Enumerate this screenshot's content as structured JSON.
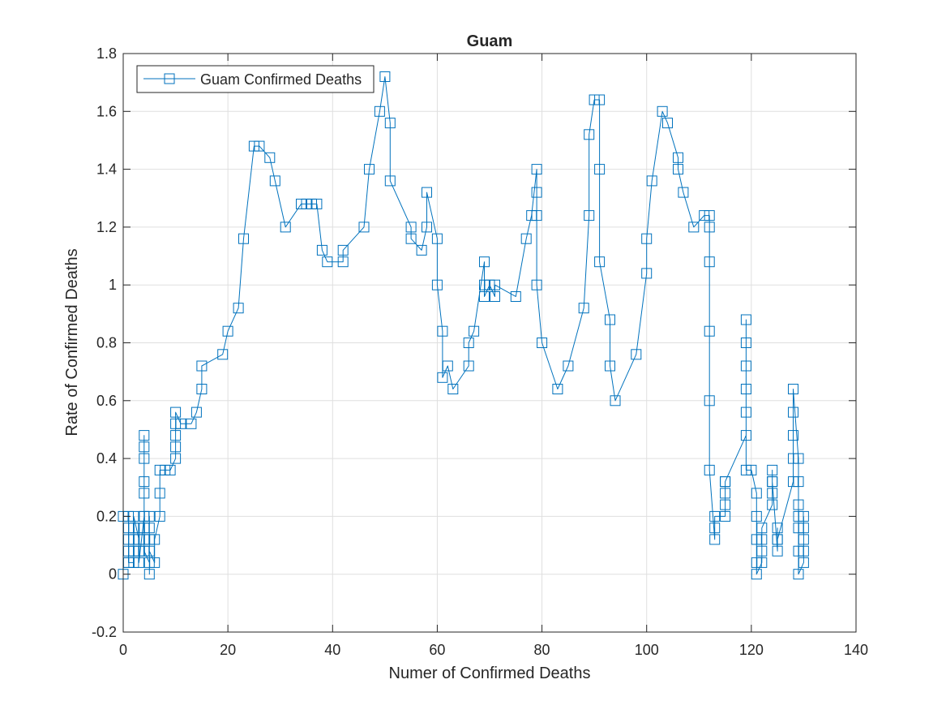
{
  "chart_data": {
    "type": "line",
    "title": "Guam",
    "xlabel": "Numer of Confirmed Deaths",
    "ylabel": "Rate of Confirmed Deaths",
    "xlim": [
      0,
      140
    ],
    "ylim": [
      -0.2,
      1.8
    ],
    "xticks": [
      0,
      20,
      40,
      60,
      80,
      100,
      120,
      140
    ],
    "yticks": [
      -0.2,
      0,
      0.2,
      0.4,
      0.6,
      0.8,
      1,
      1.2,
      1.4,
      1.6,
      1.8
    ],
    "xtick_labels": [
      "0",
      "20",
      "40",
      "60",
      "80",
      "100",
      "120",
      "140"
    ],
    "ytick_labels": [
      "-0.2",
      "0",
      "0.2",
      "0.4",
      "0.6",
      "0.8",
      "1",
      "1.2",
      "1.4",
      "1.6",
      "1.8"
    ],
    "grid": true,
    "legend": {
      "position": "top-left",
      "entries": [
        "Guam Confirmed Deaths"
      ]
    },
    "colors": {
      "series": "#0072BD",
      "grid": "#dfdfdf",
      "axis": "#262626"
    },
    "series": [
      {
        "name": "Guam Confirmed Deaths",
        "marker": "square",
        "x": [
          0,
          0,
          1,
          1,
          1,
          1,
          1,
          1,
          2,
          2,
          2,
          2,
          2,
          3,
          3,
          3,
          3,
          4,
          4,
          4,
          4,
          4,
          4,
          4,
          4,
          4,
          4,
          5,
          5,
          5,
          5,
          5,
          5,
          6,
          6,
          7,
          7,
          7,
          8,
          9,
          10,
          10,
          10,
          10,
          10,
          11,
          13,
          14,
          15,
          15,
          19,
          20,
          22,
          23,
          25,
          26,
          28,
          29,
          31,
          34,
          35,
          36,
          37,
          38,
          39,
          42,
          42,
          46,
          47,
          49,
          50,
          51,
          51,
          55,
          55,
          57,
          58,
          58,
          60,
          60,
          61,
          61,
          62,
          63,
          66,
          66,
          67,
          69,
          69,
          69,
          70,
          71,
          71,
          75,
          77,
          78,
          79,
          79,
          79,
          79,
          80,
          83,
          85,
          88,
          89,
          89,
          90,
          91,
          91,
          91,
          93,
          93,
          94,
          98,
          100,
          100,
          101,
          103,
          104,
          106,
          106,
          107,
          109,
          111,
          112,
          112,
          112,
          112,
          112,
          112,
          113,
          113,
          113,
          115,
          115,
          115,
          115,
          115,
          119,
          119,
          119,
          119,
          119,
          119,
          119,
          120,
          121,
          121,
          121,
          121,
          121,
          122,
          122,
          122,
          122,
          124,
          124,
          124,
          124,
          124,
          125,
          125,
          125,
          125,
          128,
          128,
          128,
          128,
          128,
          129,
          129,
          129,
          129,
          129,
          129,
          129,
          130,
          130,
          130,
          130,
          130
        ],
        "y": [
          0,
          0.2,
          0.2,
          0.16,
          0.12,
          0.08,
          0.04,
          0.04,
          0.04,
          0.08,
          0.12,
          0.16,
          0.2,
          0.12,
          0.16,
          0.08,
          0.04,
          0.2,
          0.28,
          0.32,
          0.4,
          0.44,
          0.48,
          0.2,
          0.16,
          0.12,
          0.08,
          0.04,
          0,
          0.12,
          0.16,
          0.2,
          0.08,
          0.04,
          0.12,
          0.2,
          0.28,
          0.36,
          0.36,
          0.36,
          0.4,
          0.44,
          0.48,
          0.52,
          0.56,
          0.52,
          0.52,
          0.56,
          0.64,
          0.72,
          0.76,
          0.84,
          0.92,
          1.16,
          1.48,
          1.48,
          1.44,
          1.36,
          1.2,
          1.28,
          1.28,
          1.28,
          1.28,
          1.12,
          1.08,
          1.08,
          1.12,
          1.2,
          1.4,
          1.6,
          1.72,
          1.56,
          1.36,
          1.2,
          1.16,
          1.12,
          1.2,
          1.32,
          1.16,
          1.0,
          0.84,
          0.68,
          0.72,
          0.64,
          0.72,
          0.8,
          0.84,
          1.08,
          1.0,
          0.96,
          1.0,
          0.96,
          1.0,
          0.96,
          1.16,
          1.24,
          1.4,
          1.32,
          1.24,
          1.0,
          0.8,
          0.64,
          0.72,
          0.92,
          1.24,
          1.52,
          1.64,
          1.64,
          1.4,
          1.08,
          0.88,
          0.72,
          0.6,
          0.76,
          1.04,
          1.16,
          1.36,
          1.6,
          1.56,
          1.44,
          1.4,
          1.32,
          1.2,
          1.24,
          1.24,
          1.2,
          1.08,
          0.84,
          0.6,
          0.36,
          0.12,
          0.16,
          0.2,
          0.2,
          0.24,
          0.28,
          0.32,
          0.32,
          0.48,
          0.56,
          0.64,
          0.72,
          0.8,
          0.88,
          0.36,
          0.36,
          0.28,
          0.2,
          0.12,
          0.04,
          0,
          0.04,
          0.08,
          0.12,
          0.16,
          0.24,
          0.28,
          0.32,
          0.36,
          0.32,
          0.08,
          0.12,
          0.16,
          0.12,
          0.32,
          0.4,
          0.48,
          0.56,
          0.64,
          0.4,
          0.32,
          0.24,
          0.2,
          0.16,
          0.08,
          0,
          0.04,
          0.08,
          0.12,
          0.16,
          0.2
        ]
      }
    ]
  }
}
